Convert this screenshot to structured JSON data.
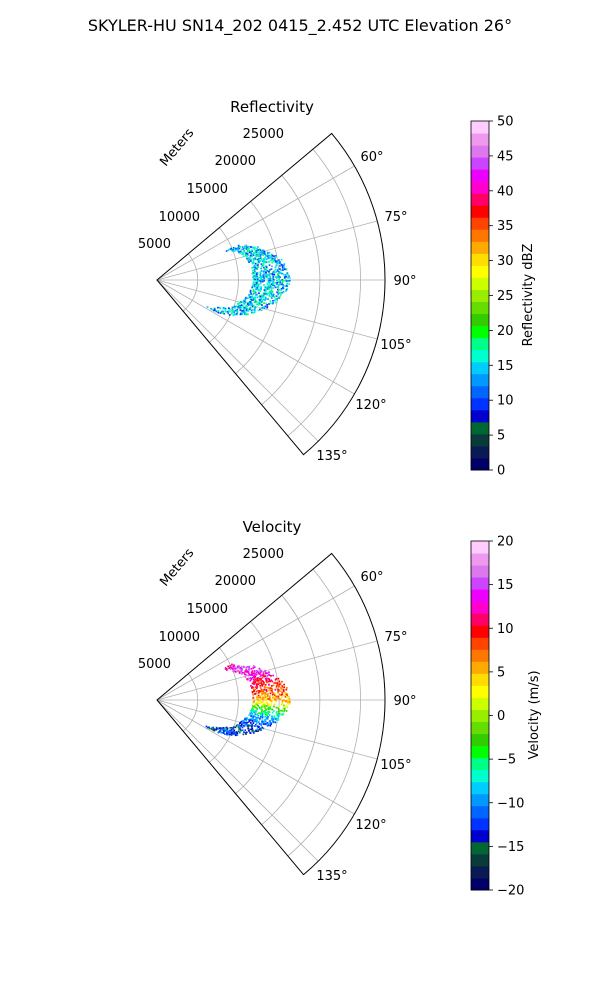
{
  "figure": {
    "suptitle": "SKYLER-HU  SN14_202  0415_2.452 UTC Elevation 26°"
  },
  "colors": {
    "reflectivity_scale": [
      "#000066",
      "#0a1a55",
      "#0b3a3a",
      "#006633",
      "#0000cc",
      "#0033ff",
      "#0066ff",
      "#0099ff",
      "#00ccff",
      "#00ffcc",
      "#00ff88",
      "#00ff00",
      "#33cc00",
      "#66dd00",
      "#99ee00",
      "#ccff00",
      "#ffff00",
      "#ffdd00",
      "#ffaa00",
      "#ff7700",
      "#ff4400",
      "#ff0000",
      "#ff0066",
      "#ff00cc",
      "#ee00ff",
      "#cc44ff",
      "#dd77ee",
      "#ee99ee",
      "#ffccff"
    ],
    "velocity_scale": [
      "#000066",
      "#0a1a55",
      "#0b3a3a",
      "#006633",
      "#0000cc",
      "#0033ff",
      "#0066ff",
      "#0099ff",
      "#00ccff",
      "#00ffcc",
      "#00ff88",
      "#00ff00",
      "#33cc00",
      "#66dd00",
      "#99ee00",
      "#ccff00",
      "#ffff00",
      "#ffdd00",
      "#ffaa00",
      "#ff7700",
      "#ff4400",
      "#ff0000",
      "#ff0066",
      "#ff00cc",
      "#ee00ff",
      "#cc44ff",
      "#dd77ee",
      "#ee99ee",
      "#ffccff"
    ]
  },
  "chart_data": [
    {
      "type": "polar-sector",
      "title": "Reflectivity",
      "radial_label": "Meters",
      "r_ticks": [
        "5000",
        "10000",
        "15000",
        "20000",
        "25000"
      ],
      "theta_ticks": [
        "60°",
        "75°",
        "90°",
        "105°",
        "120°",
        "135°"
      ],
      "azimuth_range": [
        50,
        140
      ],
      "range_max": 28000,
      "colorbar": {
        "label": "Reflectivity dBZ",
        "min": 0,
        "max": 50,
        "ticks": [
          "0",
          "5",
          "10",
          "15",
          "20",
          "25",
          "30",
          "35",
          "40",
          "45",
          "50"
        ]
      },
      "echo_band": {
        "azimuth": [
          66,
          70,
          75,
          80,
          85,
          90,
          95,
          100,
          105,
          110,
          115,
          118
        ],
        "range_inner": [
          9000,
          10500,
          11200,
          11600,
          11700,
          11800,
          11600,
          11200,
          10500,
          9500,
          7800,
          6800
        ],
        "range_outer": [
          10500,
          12500,
          14000,
          15300,
          16000,
          16300,
          15800,
          14800,
          13500,
          12000,
          10000,
          8500
        ],
        "value_low": 9,
        "value_high": 19
      }
    },
    {
      "type": "polar-sector",
      "title": "Velocity",
      "radial_label": "Meters",
      "r_ticks": [
        "5000",
        "10000",
        "15000",
        "20000",
        "25000"
      ],
      "theta_ticks": [
        "60°",
        "75°",
        "90°",
        "105°",
        "120°",
        "135°"
      ],
      "azimuth_range": [
        50,
        140
      ],
      "range_max": 28000,
      "colorbar": {
        "label": "Velocity (m/s)",
        "min": -20,
        "max": 20,
        "ticks": [
          "−20",
          "−15",
          "−10",
          "−5",
          "0",
          "5",
          "10",
          "15",
          "20"
        ]
      },
      "velocity_profile": {
        "azimuth": [
          64,
          68,
          72,
          76,
          80,
          85,
          90,
          95,
          100,
          105,
          110,
          115,
          118
        ],
        "value": [
          12,
          15,
          14,
          13,
          10,
          8,
          5,
          -5,
          -10,
          -12,
          -14,
          -12,
          -13
        ]
      }
    }
  ]
}
